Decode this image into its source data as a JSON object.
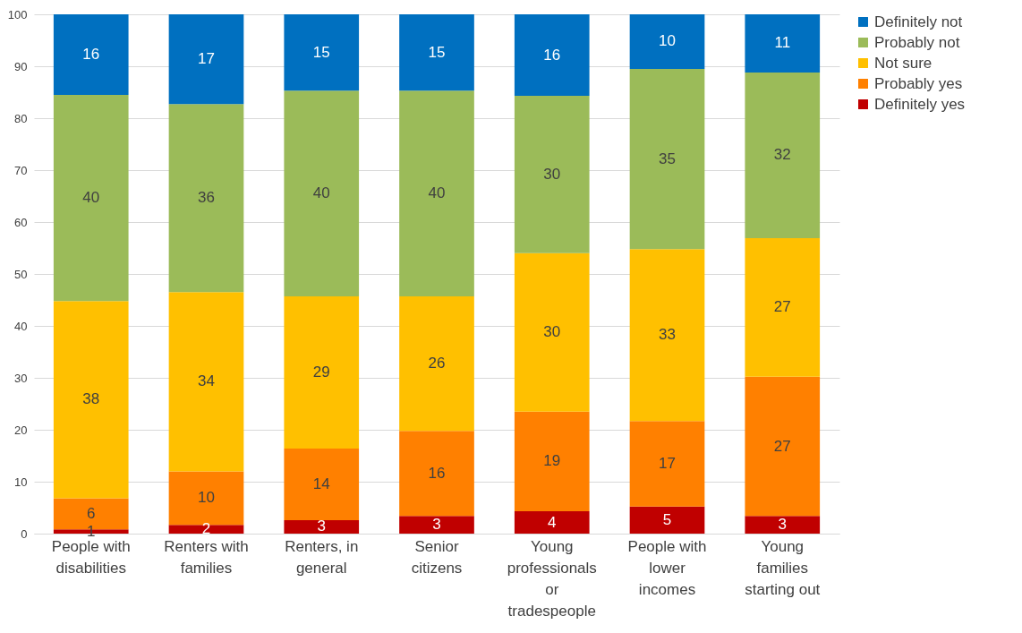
{
  "chart_data": {
    "type": "bar",
    "stacked": true,
    "categories": [
      "People with disabilities",
      "Renters with families",
      "Renters, in general",
      "Senior citizens",
      "Young professionals or tradespeople",
      "People with lower incomes",
      "Young families starting out"
    ],
    "series": [
      {
        "name": "Definitely yes",
        "color": "#c00000",
        "values": [
          0.8,
          1.7,
          2.6,
          3.4,
          4.3,
          5.2,
          3.4
        ],
        "value_labels": [
          "1",
          "2",
          "3",
          "3",
          "4",
          "5",
          "3"
        ]
      },
      {
        "name": "Probably yes",
        "color": "#ff8000",
        "values": [
          6.0,
          10.3,
          13.8,
          16.4,
          19.2,
          16.5,
          26.8
        ],
        "value_labels": [
          "6",
          "10",
          "14",
          "16",
          "19",
          "17",
          "27"
        ]
      },
      {
        "name": "Not sure",
        "color": "#ffc000",
        "values": [
          38.0,
          34.5,
          29.3,
          25.9,
          30.5,
          33.1,
          26.7
        ],
        "value_labels": [
          "38",
          "34",
          "29",
          "26",
          "30",
          "33",
          "27"
        ]
      },
      {
        "name": "Probably not",
        "color": "#9bbb59",
        "values": [
          39.7,
          36.2,
          39.6,
          39.6,
          30.3,
          34.7,
          31.9
        ],
        "value_labels": [
          "40",
          "36",
          "40",
          "40",
          "30",
          "35",
          "32"
        ]
      },
      {
        "name": "Definitely not",
        "color": "#0070c0",
        "values": [
          15.5,
          17.3,
          14.7,
          14.7,
          15.7,
          10.5,
          11.2
        ],
        "value_labels": [
          "16",
          "17",
          "15",
          "15",
          "16",
          "10",
          "11"
        ]
      }
    ],
    "ylim": [
      0,
      100
    ],
    "yticks": [
      0,
      10,
      20,
      30,
      40,
      50,
      60,
      70,
      80,
      90,
      100
    ],
    "grid": "y",
    "legend": "right"
  }
}
